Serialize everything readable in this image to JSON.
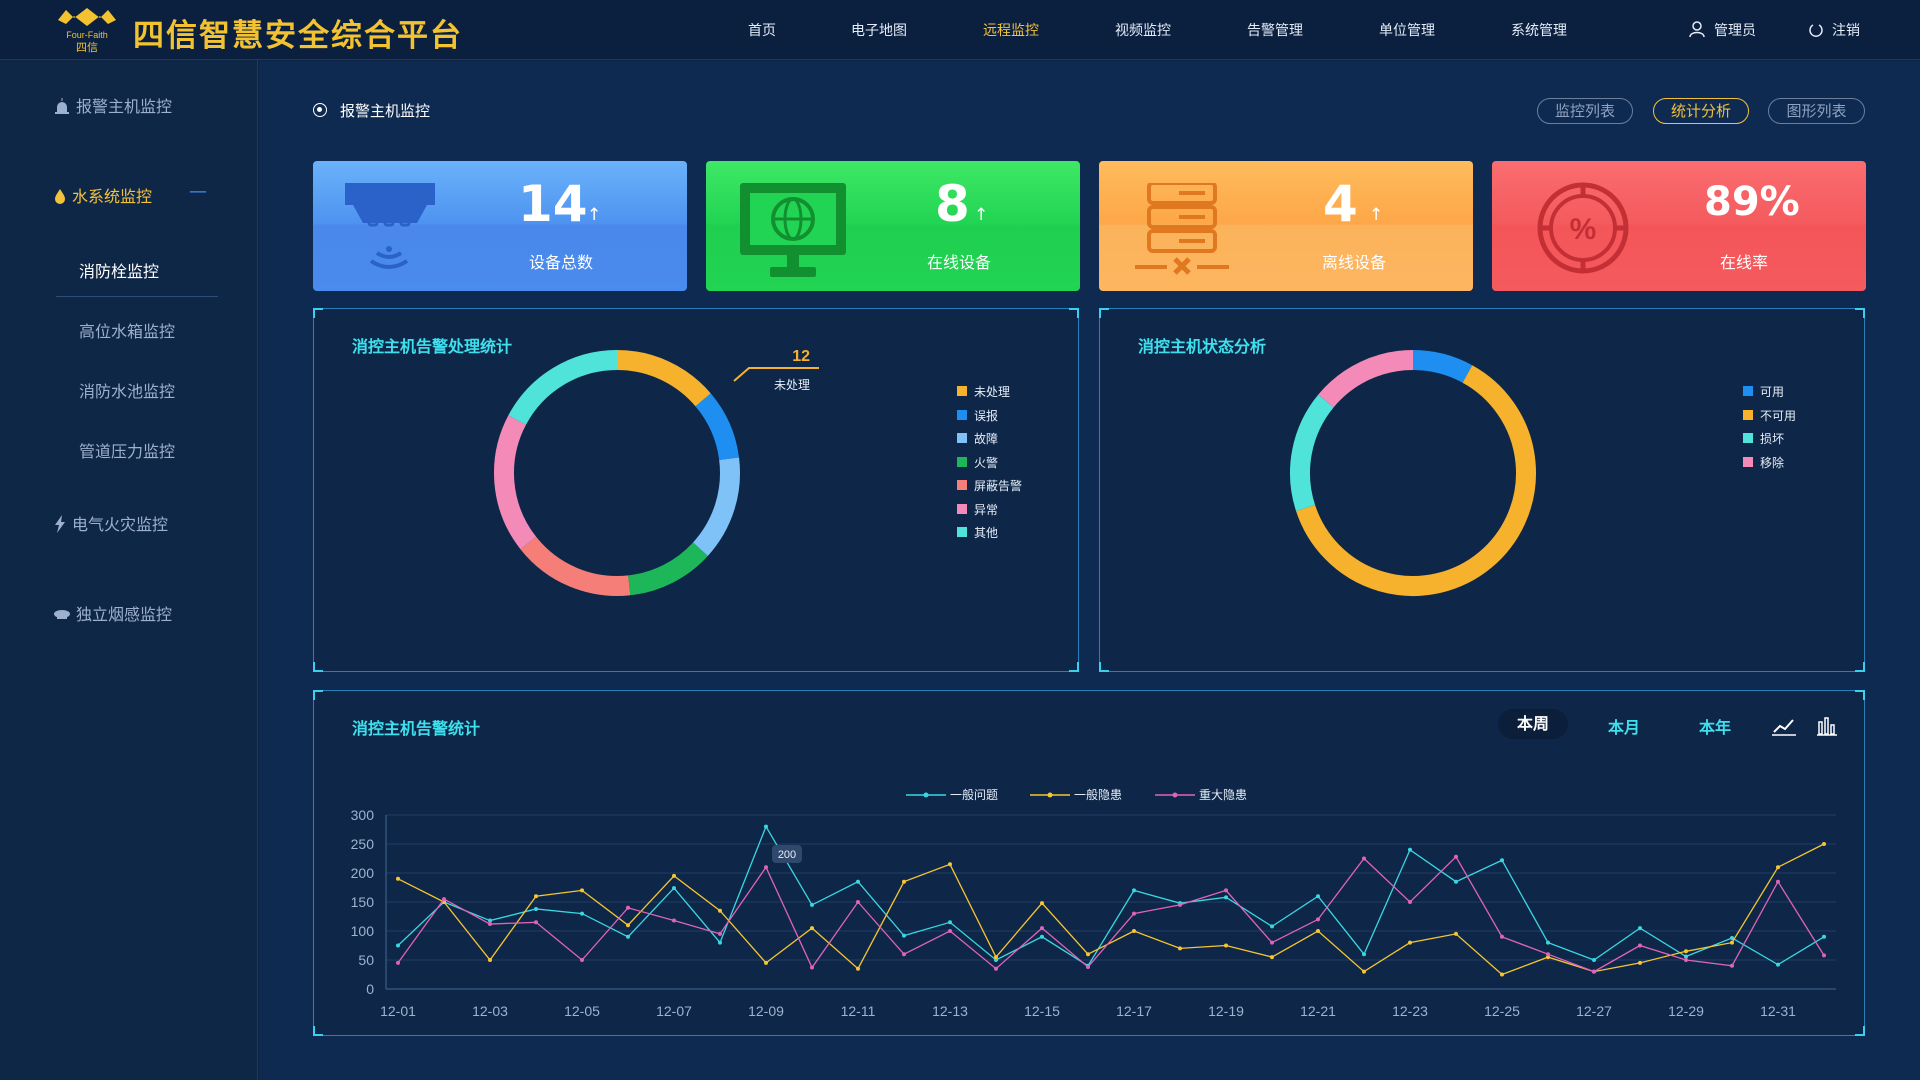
{
  "app": {
    "title": "四信智慧安全综合平台",
    "logo_brand": "Four-Faith",
    "logo_cn": "四信"
  },
  "nav": {
    "items": [
      "首页",
      "电子地图",
      "远程监控",
      "视频监控",
      "告警管理",
      "单位管理",
      "系统管理"
    ],
    "active": "远程监控",
    "user": "管理员",
    "logout": "注销"
  },
  "sidebar": {
    "alarm_host": "报警主机监控",
    "water": "水系统监控",
    "water_sub": [
      "消防栓监控",
      "高位水箱监控",
      "消防水池监控",
      "管道压力监控"
    ],
    "active_sub": "消防栓监控",
    "electric": "电气火灾监控",
    "smoke": "独立烟感监控"
  },
  "page": {
    "title": "报警主机监控",
    "views": [
      "监控列表",
      "统计分析",
      "图形列表"
    ],
    "active_view": "统计分析"
  },
  "cards": [
    {
      "value": "14",
      "label": "设备总数",
      "color": "#4a8ff0",
      "arrow": "↑"
    },
    {
      "value": "8",
      "label": "在线设备",
      "color": "#22d453",
      "arrow": "↑"
    },
    {
      "value": "4",
      "label": "离线设备",
      "color": "#fda748",
      "arrow": "↑"
    },
    {
      "value": "89%",
      "label": "在线率",
      "color": "#f45a5e",
      "arrow": ""
    }
  ],
  "panel_alarm_stats": {
    "title": "消控主机告警处理统计",
    "callout_value": "12",
    "callout_label": "未处理",
    "legend": [
      {
        "name": "未处理",
        "color": "#f6b22c"
      },
      {
        "name": "误报",
        "color": "#1e8ff0"
      },
      {
        "name": "故障",
        "color": "#7ec2f8"
      },
      {
        "name": "火警",
        "color": "#1db75a"
      },
      {
        "name": "屏蔽告警",
        "color": "#f67e79"
      },
      {
        "name": "异常",
        "color": "#f48ab8"
      },
      {
        "name": "其他",
        "color": "#4fe3da"
      }
    ]
  },
  "panel_status": {
    "title": "消控主机状态分析",
    "legend": [
      {
        "name": "可用",
        "color": "#1e8ff0"
      },
      {
        "name": "不可用",
        "color": "#f6b22c"
      },
      {
        "name": "损坏",
        "color": "#4fe3da"
      },
      {
        "name": "移除",
        "color": "#f48ab8"
      }
    ]
  },
  "panel_trend": {
    "title": "消控主机告警统计",
    "tabs": [
      "本周",
      "本月",
      "本年"
    ],
    "active_tab": "本周",
    "tooltip": "200"
  },
  "chart_data": [
    {
      "type": "pie",
      "title": "消控主机告警处理统计",
      "labels": [
        "未处理",
        "误报",
        "故障",
        "火警",
        "屏蔽告警",
        "异常",
        "其他"
      ],
      "values": [
        12,
        8,
        12,
        10,
        14,
        16,
        15
      ],
      "colors": [
        "#f6b22c",
        "#1e8ff0",
        "#7ec2f8",
        "#1db75a",
        "#f67e79",
        "#f48ab8",
        "#4fe3da"
      ]
    },
    {
      "type": "pie",
      "title": "消控主机状态分析",
      "labels": [
        "可用",
        "不可用",
        "损坏",
        "移除"
      ],
      "values": [
        8,
        62,
        16,
        14
      ],
      "colors": [
        "#1e8ff0",
        "#f6b22c",
        "#4fe3da",
        "#f48ab8"
      ]
    },
    {
      "type": "line",
      "title": "消控主机告警统计",
      "x": [
        "12-01",
        "12-02",
        "12-03",
        "12-04",
        "12-05",
        "12-06",
        "12-07",
        "12-08",
        "12-09",
        "12-10",
        "12-11",
        "12-12",
        "12-13",
        "12-14",
        "12-15",
        "12-16",
        "12-17",
        "12-18",
        "12-19",
        "12-20",
        "12-21",
        "12-22",
        "12-23",
        "12-24",
        "12-25",
        "12-26",
        "12-27",
        "12-28",
        "12-29",
        "12-30",
        "12-31",
        "01-01"
      ],
      "x_tick_labels": [
        "12-01",
        "12-03",
        "12-05",
        "12-07",
        "12-09",
        "12-11",
        "12-13",
        "12-15",
        "12-17",
        "12-19",
        "12-21",
        "12-23",
        "12-25",
        "12-27",
        "12-29",
        "12-31"
      ],
      "ylim": [
        0,
        300
      ],
      "yticks": [
        0,
        50,
        100,
        150,
        200,
        250,
        300
      ],
      "series": [
        {
          "name": "一般问题",
          "color": "#3ad7e0",
          "values": [
            75,
            150,
            118,
            138,
            130,
            90,
            174,
            80,
            280,
            145,
            185,
            92,
            115,
            50,
            90,
            40,
            170,
            148,
            158,
            108,
            160,
            60,
            240,
            185,
            222,
            80,
            50,
            105,
            56,
            88,
            42,
            90
          ]
        },
        {
          "name": "一般隐患",
          "color": "#f6c531",
          "values": [
            190,
            150,
            50,
            160,
            170,
            110,
            195,
            135,
            45,
            105,
            35,
            185,
            215,
            55,
            148,
            60,
            100,
            70,
            75,
            55,
            100,
            30,
            80,
            95,
            25,
            55,
            30,
            45,
            65,
            80,
            210,
            250
          ]
        },
        {
          "name": "重大隐患",
          "color": "#e063b9",
          "values": [
            45,
            155,
            112,
            115,
            50,
            140,
            118,
            95,
            210,
            37,
            150,
            60,
            100,
            35,
            105,
            38,
            130,
            145,
            170,
            80,
            120,
            225,
            150,
            228,
            90,
            60,
            30,
            75,
            50,
            40,
            185,
            58
          ]
        }
      ]
    }
  ]
}
